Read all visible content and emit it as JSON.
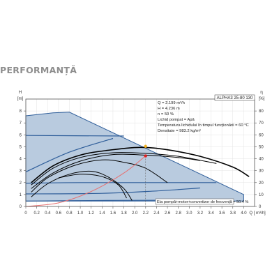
{
  "page": {
    "heading": "PERFORMANȚĂ"
  },
  "chart_data": {
    "type": "line",
    "title": "ALPHA3 25-80 130",
    "y_left": {
      "symbol": "H",
      "unit": "[m]",
      "range": [
        0,
        9
      ],
      "ticks": [
        "0",
        "1",
        "2",
        "3",
        "4",
        "5",
        "6",
        "7",
        "8"
      ]
    },
    "y_right": {
      "symbol": "eta",
      "unit": "[%]",
      "range": [
        0,
        90
      ],
      "ticks": [
        "0",
        "10",
        "20",
        "30",
        "40",
        "50",
        "60",
        "70",
        "80"
      ]
    },
    "x_axis": {
      "range": [
        0,
        4.2
      ],
      "unit_label": "Q [ m³/h]",
      "ticks": [
        "0",
        "0.2",
        "0.4",
        "0.6",
        "0.8",
        "1.0",
        "1.2",
        "1.4",
        "1.6",
        "1.8",
        "2.0",
        "2.2",
        "2.4",
        "2.6",
        "2.8",
        "3.0",
        "3.2",
        "3.4",
        "3.6",
        "3.8",
        "4.0"
      ]
    },
    "info_lines": [
      "Q = 2.199  m³/h",
      "H = 4.236 m",
      "n = 50 %",
      "Lichid pompat = Apă",
      "Temperatura lichidului în timpul funcționării = 60  °C",
      "Densitate = 983.2  kg/m³"
    ],
    "efficiency_label": "Eta pompă+motor+convertizor de frecvență = 50.4 %",
    "operating_point": {
      "q": 2.199,
      "h": 4.236
    },
    "efficiency_point": {
      "q": 2.199,
      "eta": 50.4
    },
    "colors": {
      "envelope_fill": "#b9cbdf",
      "curve_blue": "#2f5e9a",
      "eta_black": "#000000",
      "system_red": "#e76f6f",
      "op_red": "#e02020",
      "eta_marker": "#f0b020"
    },
    "envelope": [
      [
        0,
        7.6
      ],
      [
        0.5,
        7.85
      ],
      [
        0.8,
        7.9
      ],
      [
        4.0,
        1.0
      ],
      [
        4.0,
        0.45
      ],
      [
        0,
        0.45
      ]
    ],
    "pump_curves_blue": [
      [
        [
          0,
          2.9
        ],
        [
          0.8,
          4.55
        ],
        [
          1.6,
          5.7
        ]
      ],
      [
        [
          0,
          1.95
        ],
        [
          1.0,
          2.0
        ],
        [
          2.2,
          2.0
        ],
        [
          3.5,
          2.0
        ]
      ],
      [
        [
          0,
          1.05
        ],
        [
          1.4,
          1.1
        ],
        [
          2.4,
          1.3
        ],
        [
          3.2,
          1.55
        ]
      ],
      [
        [
          0,
          0.45
        ],
        [
          1.5,
          0.5
        ],
        [
          2.6,
          0.52
        ]
      ],
      [
        [
          0,
          5.95
        ],
        [
          1.8,
          5.9
        ]
      ]
    ],
    "system_curve": [
      [
        0,
        0
      ],
      [
        0.6,
        0.3
      ],
      [
        1.2,
        1.25
      ],
      [
        1.8,
        2.8
      ],
      [
        2.199,
        4.236
      ]
    ],
    "eta_curves": [
      [
        [
          0.1,
          2.0
        ],
        [
          0.5,
          3.4
        ],
        [
          1.0,
          4.3
        ],
        [
          1.5,
          4.7
        ],
        [
          2.1,
          4.95
        ],
        [
          2.6,
          4.75
        ],
        [
          3.2,
          4.2
        ],
        [
          3.8,
          3.3
        ],
        [
          4.1,
          2.5
        ]
      ],
      [
        [
          0.1,
          1.8
        ],
        [
          0.5,
          3.2
        ],
        [
          1.0,
          4.1
        ],
        [
          1.6,
          4.5
        ],
        [
          2.2,
          4.45
        ],
        [
          2.8,
          4.2
        ],
        [
          3.5,
          3.6
        ]
      ],
      [
        [
          0.1,
          1.5
        ],
        [
          0.5,
          2.8
        ],
        [
          1.0,
          3.8
        ],
        [
          1.6,
          4.35
        ],
        [
          2.2,
          4.3
        ],
        [
          2.8,
          4.1
        ],
        [
          3.2,
          3.85
        ]
      ],
      [
        [
          0.1,
          1.2
        ],
        [
          0.4,
          2.4
        ],
        [
          0.9,
          3.45
        ],
        [
          1.4,
          3.9
        ],
        [
          1.8,
          3.7
        ],
        [
          2.2,
          3.2
        ],
        [
          2.6,
          2.0
        ]
      ],
      [
        [
          0.1,
          0.8
        ],
        [
          0.4,
          1.9
        ],
        [
          0.8,
          2.7
        ],
        [
          1.2,
          2.95
        ],
        [
          1.5,
          2.5
        ],
        [
          1.8,
          1.5
        ],
        [
          1.95,
          0.5
        ]
      ],
      [
        [
          0.6,
          2.4
        ],
        [
          1.0,
          2.7
        ],
        [
          1.4,
          2.5
        ],
        [
          1.7,
          1.8
        ],
        [
          1.85,
          0.7
        ]
      ]
    ]
  }
}
